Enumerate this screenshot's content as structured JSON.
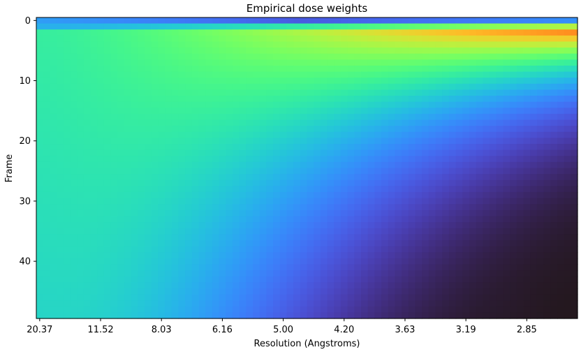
{
  "chart_data": {
    "type": "heatmap",
    "title": "Empirical dose weights",
    "xlabel": "Resolution (Angstroms)",
    "ylabel": "Frame",
    "colormap": "turbo",
    "frame_range": [
      0,
      49
    ],
    "n_resolution_bins": 80,
    "x_ticks": [
      "20.37",
      "11.52",
      "8.03",
      "6.16",
      "5.00",
      "4.20",
      "3.63",
      "3.19",
      "2.85"
    ],
    "y_ticks": [
      "0",
      "10",
      "20",
      "30",
      "40"
    ],
    "y_tick_values": [
      0,
      10,
      20,
      30,
      40
    ],
    "weights_description_peak_frame": 2,
    "colors": {
      "low": "#30123b",
      "high": "#7a0403"
    }
  }
}
